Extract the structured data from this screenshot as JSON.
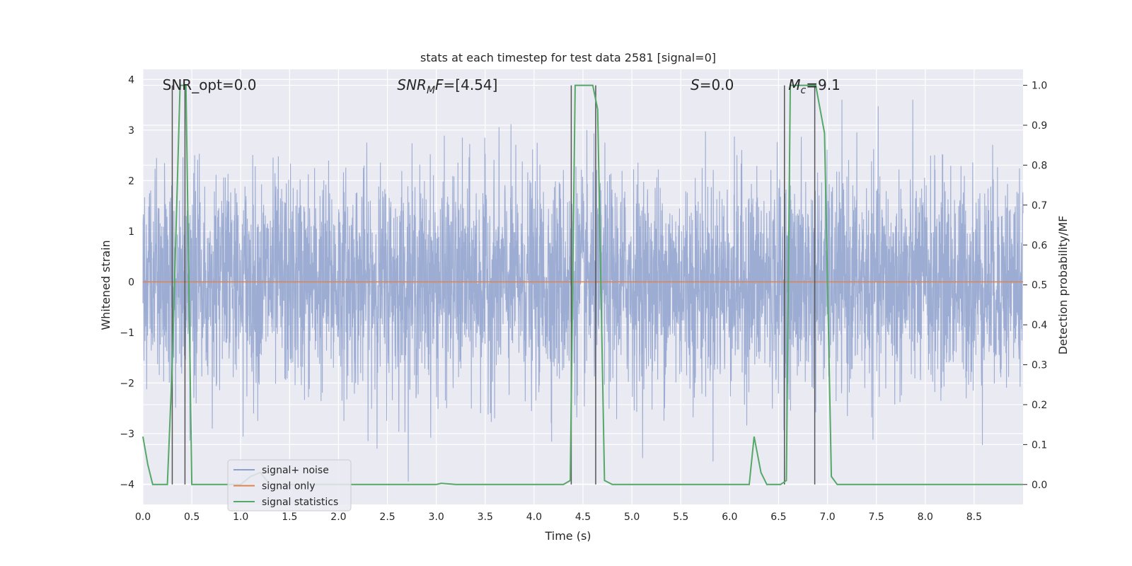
{
  "chart_data": {
    "type": "line",
    "title": "stats at each timestep for test data 2581 [signal=0]",
    "xlabel": "Time (s)",
    "ylabel": "Whitened strain",
    "y2label": "Detection probability/MF",
    "xlim": [
      0.0,
      9.0
    ],
    "ylim": [
      -4.4,
      4.2
    ],
    "y2lim": [
      -0.05,
      1.04
    ],
    "x_ticks": [
      "0.0",
      "0.5",
      "1.0",
      "1.5",
      "2.0",
      "2.5",
      "3.0",
      "3.5",
      "4.0",
      "4.5",
      "5.0",
      "5.5",
      "6.0",
      "6.5",
      "7.0",
      "7.5",
      "8.0",
      "8.5"
    ],
    "y_ticks": [
      "−4",
      "−3",
      "−2",
      "−1",
      "0",
      "1",
      "2",
      "3",
      "4"
    ],
    "y2_ticks": [
      "0.0",
      "0.1",
      "0.2",
      "0.3",
      "0.4",
      "0.5",
      "0.6",
      "0.7",
      "0.8",
      "0.9",
      "1.0"
    ],
    "grid": true,
    "legend_position": "lower-left",
    "annotations": {
      "snr_opt": {
        "text": "SNR_opt=0.0",
        "x": 0.2,
        "y": 3.88
      },
      "snr_mf": {
        "base": "SNR",
        "sub": "M",
        "rest": "F=[4.54]",
        "x": 2.6,
        "y": 3.88
      },
      "s": {
        "base": "S",
        "rest": "=0.0",
        "x": 5.6,
        "y": 3.88
      },
      "mc": {
        "base": "M",
        "sub": "c",
        "rest": "=9.1",
        "x": 6.6,
        "y": 3.88
      }
    },
    "series": [
      {
        "name": "signal+ noise",
        "axis": "left",
        "color": "#8ea1cc",
        "description": "whitened strain, roughly Gaussian noise sampled densely over 0–9 s, amplitude mostly within ±3",
        "approx_amplitude": 3.0
      },
      {
        "name": "signal only",
        "axis": "left",
        "color": "#dd8452",
        "x": [
          0.0,
          9.0
        ],
        "y": [
          0.0,
          0.0
        ]
      },
      {
        "name": "signal statistics",
        "axis": "right",
        "color": "#55a868",
        "x": [
          0.0,
          0.05,
          0.1,
          0.25,
          0.3,
          0.38,
          0.44,
          0.5,
          0.55,
          0.6,
          0.7,
          0.9,
          1.0,
          1.1,
          1.2,
          1.3,
          2.5,
          3.0,
          3.05,
          3.2,
          4.3,
          4.37,
          4.42,
          4.48,
          4.6,
          4.65,
          4.72,
          4.8,
          4.9,
          6.15,
          6.2,
          6.25,
          6.32,
          6.38,
          6.52,
          6.58,
          6.62,
          6.7,
          6.88,
          6.97,
          7.04,
          7.1,
          9.0
        ],
        "y": [
          0.12,
          0.05,
          0.0,
          0.0,
          0.3,
          1.0,
          1.0,
          0.0,
          0.0,
          0.0,
          0.0,
          0.0,
          0.0,
          0.02,
          0.03,
          0.0,
          0.0,
          0.0,
          0.003,
          0.0,
          0.0,
          0.01,
          1.0,
          1.0,
          1.0,
          0.94,
          0.01,
          0.0,
          0.0,
          0.0,
          0.0,
          0.12,
          0.03,
          0.0,
          0.0,
          0.01,
          1.0,
          1.0,
          1.0,
          0.88,
          0.02,
          0.0,
          0.0
        ]
      }
    ],
    "vertical_markers": [
      0.3,
      0.43,
      4.38,
      4.63,
      6.56,
      6.87
    ],
    "vertical_marker_color": "#555555"
  }
}
